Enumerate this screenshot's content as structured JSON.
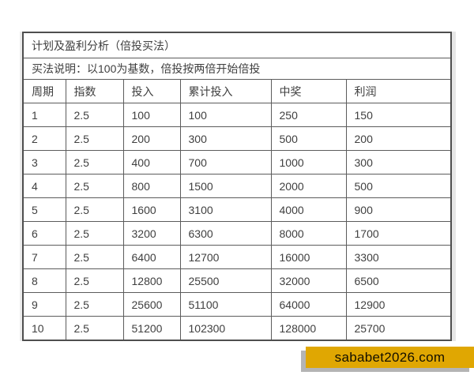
{
  "table": {
    "title": "计划及盈利分析（倍投买法）",
    "description": "买法说明：以100为基数，倍投按两倍开始倍投",
    "columns": [
      "周期",
      "指数",
      "投入",
      "累计投入",
      "中奖",
      "利润"
    ],
    "rows": [
      [
        "1",
        "2.5",
        "100",
        "100",
        "250",
        "150"
      ],
      [
        "2",
        "2.5",
        "200",
        "300",
        "500",
        "200"
      ],
      [
        "3",
        "2.5",
        "400",
        "700",
        "1000",
        "300"
      ],
      [
        "4",
        "2.5",
        "800",
        "1500",
        "2000",
        "500"
      ],
      [
        "5",
        "2.5",
        "1600",
        "3100",
        "4000",
        "900"
      ],
      [
        "6",
        "2.5",
        "3200",
        "6300",
        "8000",
        "1700"
      ],
      [
        "7",
        "2.5",
        "6400",
        "12700",
        "16000",
        "3300"
      ],
      [
        "8",
        "2.5",
        "12800",
        "25500",
        "32000",
        "6500"
      ],
      [
        "9",
        "2.5",
        "25600",
        "51100",
        "64000",
        "12900"
      ],
      [
        "10",
        "2.5",
        "51200",
        "102300",
        "128000",
        "25700"
      ]
    ]
  },
  "watermark": {
    "text": "sababet2026.com",
    "background_color": "#e0a702",
    "text_color": "#141000",
    "shadow_color": "#b4b4b4"
  }
}
